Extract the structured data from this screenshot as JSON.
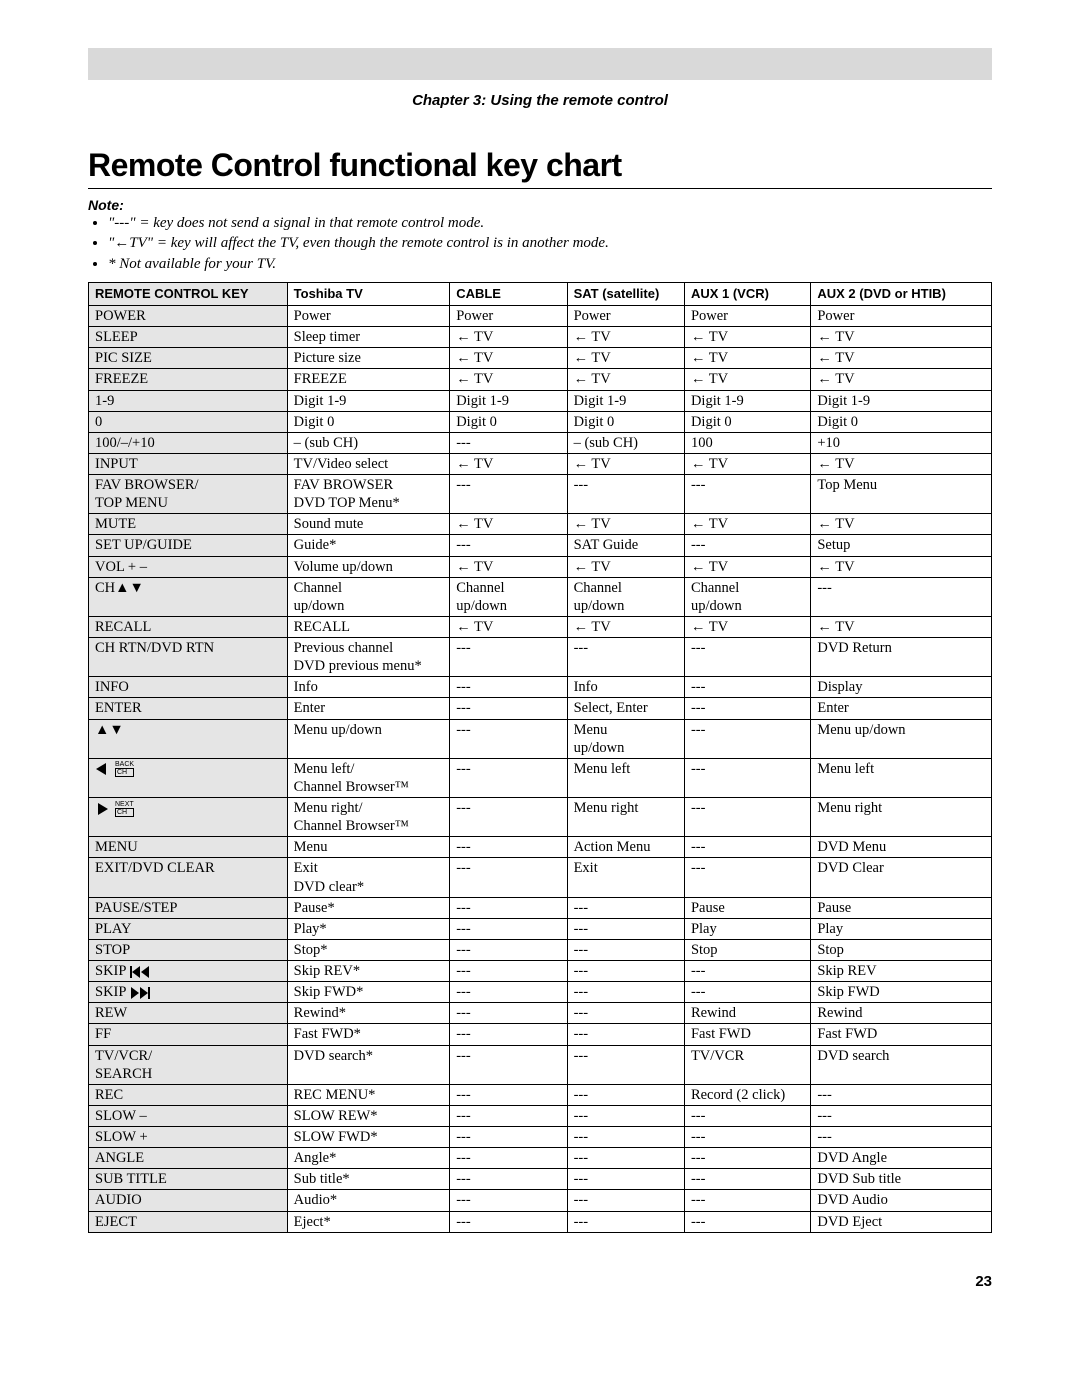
{
  "header": {
    "chapter_line": "Chapter 3: Using the remote control"
  },
  "title": "Remote Control functional key chart",
  "note_label": "Note:",
  "notes": [
    "\"---\" = key does not send a signal in that remote control mode.",
    "\"←TV\" = key will affect the TV, even though the remote control is in another mode.",
    "* Not available for your TV."
  ],
  "table": {
    "columns": [
      "REMOTE CONTROL KEY",
      "Toshiba TV",
      "CABLE",
      "SAT (satellite)",
      "AUX 1 (VCR)",
      "AUX 2 (DVD or HTIB)"
    ],
    "column_widths_pct": [
      22,
      18,
      13,
      13,
      14,
      20
    ],
    "header_bg": "#e5e5e5",
    "keycol_bg": "#e5e5e5",
    "border_color": "#000000",
    "font_size_pt": 11,
    "rows": [
      {
        "key": "POWER",
        "cells": [
          "Power",
          "Power",
          "Power",
          "Power",
          "Power"
        ]
      },
      {
        "key": "SLEEP",
        "cells": [
          "Sleep timer",
          "← TV",
          "← TV",
          "← TV",
          "← TV"
        ]
      },
      {
        "key": "PIC SIZE",
        "cells": [
          "Picture size",
          "← TV",
          "← TV",
          "← TV",
          "← TV"
        ]
      },
      {
        "key": "FREEZE",
        "cells": [
          "FREEZE",
          "← TV",
          "← TV",
          "← TV",
          "← TV"
        ]
      },
      {
        "key": "1-9",
        "cells": [
          "Digit 1-9",
          "Digit 1-9",
          "Digit 1-9",
          "Digit 1-9",
          "Digit 1-9"
        ]
      },
      {
        "key": "0",
        "cells": [
          "Digit 0",
          "Digit 0",
          "Digit 0",
          "Digit 0",
          "Digit 0"
        ]
      },
      {
        "key": "100/–/+10",
        "cells": [
          "– (sub CH)",
          "---",
          "– (sub CH)",
          "100",
          "+10"
        ]
      },
      {
        "key": "INPUT",
        "cells": [
          "TV/Video select",
          "← TV",
          "← TV",
          "← TV",
          "← TV"
        ]
      },
      {
        "key": "FAV BROWSER/\nTOP MENU",
        "cells": [
          "FAV BROWSER\nDVD TOP Menu*",
          "---",
          "---",
          "---",
          "Top Menu"
        ]
      },
      {
        "key": "MUTE",
        "cells": [
          "Sound mute",
          "← TV",
          "← TV",
          "← TV",
          "← TV"
        ]
      },
      {
        "key": "SET UP/GUIDE",
        "cells": [
          "Guide*",
          "---",
          "SAT Guide",
          "---",
          "Setup"
        ]
      },
      {
        "key": "VOL + –",
        "cells": [
          "Volume up/down",
          "← TV",
          "← TV",
          "← TV",
          "← TV"
        ]
      },
      {
        "key": "CH▲▼",
        "cells": [
          "Channel\nup/down",
          "Channel\nup/down",
          "Channel\nup/down",
          "Channel\nup/down",
          "---"
        ]
      },
      {
        "key": "RECALL",
        "cells": [
          "RECALL",
          "← TV",
          "← TV",
          "← TV",
          "← TV"
        ]
      },
      {
        "key": "CH RTN/DVD RTN",
        "cells": [
          "Previous channel\nDVD previous menu*",
          "---",
          "---",
          "---",
          "DVD Return"
        ]
      },
      {
        "key": "INFO",
        "cells": [
          "Info",
          "---",
          "Info",
          "---",
          "Display"
        ]
      },
      {
        "key": "ENTER",
        "cells": [
          "Enter",
          "---",
          "Select, Enter",
          "---",
          "Enter"
        ]
      },
      {
        "key": "▲▼",
        "cells": [
          "Menu up/down",
          "---",
          "Menu\nup/down",
          "---",
          "Menu up/down"
        ]
      },
      {
        "key_icon": "left_back",
        "cells": [
          "Menu left/\nChannel Browser™",
          "---",
          "Menu left",
          "---",
          "Menu left"
        ]
      },
      {
        "key_icon": "right_next",
        "cells": [
          "Menu right/\nChannel Browser™",
          "---",
          "Menu right",
          "---",
          "Menu right"
        ]
      },
      {
        "key": "MENU",
        "cells": [
          "Menu",
          "---",
          "Action Menu",
          "---",
          "DVD Menu"
        ]
      },
      {
        "key": "EXIT/DVD CLEAR",
        "cells": [
          "Exit\nDVD clear*",
          "---",
          "Exit",
          "---",
          "DVD Clear"
        ]
      },
      {
        "key": "PAUSE/STEP",
        "cells": [
          "Pause*",
          "---",
          "---",
          "Pause",
          "Pause"
        ]
      },
      {
        "key": "PLAY",
        "cells": [
          "Play*",
          "---",
          "---",
          "Play",
          "Play"
        ]
      },
      {
        "key": "STOP",
        "cells": [
          "Stop*",
          "---",
          "---",
          "Stop",
          "Stop"
        ]
      },
      {
        "key": "SKIP ⏮",
        "key_pre": "SKIP",
        "key_icon_suffix": "skip_prev",
        "cells": [
          "Skip REV*",
          "---",
          "---",
          "---",
          "Skip REV"
        ]
      },
      {
        "key": "SKIP ⏭",
        "key_pre": "SKIP",
        "key_icon_suffix": "skip_next",
        "cells": [
          "Skip FWD*",
          "---",
          "---",
          "---",
          "Skip FWD"
        ]
      },
      {
        "key": "REW",
        "cells": [
          "Rewind*",
          "---",
          "---",
          "Rewind",
          "Rewind"
        ]
      },
      {
        "key": "FF",
        "cells": [
          "Fast FWD*",
          "---",
          "---",
          "Fast FWD",
          "Fast FWD"
        ]
      },
      {
        "key": "TV/VCR/\nSEARCH",
        "cells": [
          "DVD search*",
          "---",
          "---",
          "TV/VCR",
          "DVD search"
        ]
      },
      {
        "key": "REC",
        "cells": [
          "REC MENU*",
          "---",
          "---",
          "Record (2 click)",
          "---"
        ]
      },
      {
        "key": "SLOW –",
        "cells": [
          "SLOW REW*",
          "---",
          "---",
          "---",
          "---"
        ]
      },
      {
        "key": "SLOW +",
        "cells": [
          "SLOW FWD*",
          "---",
          "---",
          "---",
          "---"
        ]
      },
      {
        "key": "ANGLE",
        "cells": [
          "Angle*",
          "---",
          "---",
          "---",
          "DVD Angle"
        ]
      },
      {
        "key": "SUB TITLE",
        "cells": [
          "Sub title*",
          "---",
          "---",
          "---",
          "DVD Sub title"
        ]
      },
      {
        "key": "AUDIO",
        "cells": [
          "Audio*",
          "---",
          "---",
          "---",
          "DVD Audio"
        ]
      },
      {
        "key": "EJECT",
        "cells": [
          "Eject*",
          "---",
          "---",
          "---",
          "DVD Eject"
        ]
      }
    ]
  },
  "page_number": "23",
  "colors": {
    "header_bar_bg": "#d9d9d9",
    "page_bg": "#ffffff",
    "text": "#000000"
  },
  "icons": {
    "left_back": {
      "labels": [
        "BACK",
        "CH"
      ]
    },
    "right_next": {
      "labels": [
        "NEXT",
        "CH"
      ]
    }
  }
}
